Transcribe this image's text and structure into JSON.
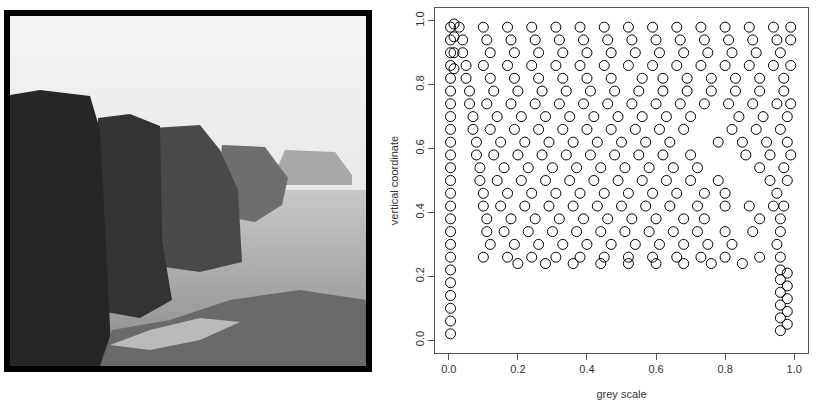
{
  "chart_data": {
    "type": "scatter",
    "xlabel": "grey scale",
    "ylabel": "vertical coordinate",
    "color": "#000000",
    "marker": "circle-open",
    "grid": false,
    "xlim": [
      -0.04,
      1.04
    ],
    "ylim": [
      -0.04,
      1.04
    ],
    "xticks": [
      {
        "value": 0,
        "label": "0.0"
      },
      0.2,
      0.4,
      0.6,
      0.8,
      {
        "value": 1,
        "label": "1.0"
      }
    ],
    "yticks": [
      {
        "value": 0,
        "label": "0.0"
      },
      0.2,
      0.4,
      0.6,
      0.8,
      {
        "value": 1,
        "label": "1.0"
      }
    ],
    "x": [
      0.03,
      0.1,
      0.17,
      0.24,
      0.31,
      0.38,
      0.45,
      0.52,
      0.59,
      0.66,
      0.73,
      0.8,
      0.87,
      0.94,
      0.99,
      0.04,
      0.11,
      0.18,
      0.25,
      0.32,
      0.39,
      0.46,
      0.53,
      0.6,
      0.67,
      0.74,
      0.81,
      0.88,
      0.95,
      0.99,
      0.04,
      0.12,
      0.19,
      0.26,
      0.33,
      0.4,
      0.47,
      0.54,
      0.61,
      0.68,
      0.75,
      0.82,
      0.89,
      0.96,
      0.05,
      0.1,
      0.17,
      0.24,
      0.31,
      0.38,
      0.45,
      0.52,
      0.59,
      0.66,
      0.73,
      0.8,
      0.87,
      0.94,
      0.99,
      0.05,
      0.12,
      0.19,
      0.26,
      0.33,
      0.4,
      0.47,
      0.56,
      0.62,
      0.69,
      0.76,
      0.83,
      0.9,
      0.97,
      0.06,
      0.13,
      0.2,
      0.27,
      0.34,
      0.41,
      0.48,
      0.55,
      0.62,
      0.69,
      0.76,
      0.83,
      0.9,
      0.97,
      0.06,
      0.11,
      0.18,
      0.25,
      0.32,
      0.39,
      0.46,
      0.53,
      0.6,
      0.67,
      0.74,
      0.81,
      0.88,
      0.95,
      0.99,
      0.07,
      0.14,
      0.21,
      0.28,
      0.35,
      0.42,
      0.49,
      0.56,
      0.63,
      0.7,
      0.84,
      0.91,
      0.98,
      0.07,
      0.12,
      0.19,
      0.26,
      0.33,
      0.4,
      0.47,
      0.54,
      0.61,
      0.68,
      0.82,
      0.89,
      0.96,
      0.08,
      0.15,
      0.22,
      0.29,
      0.36,
      0.43,
      0.5,
      0.57,
      0.64,
      0.78,
      0.85,
      0.92,
      0.98,
      0.08,
      0.13,
      0.2,
      0.27,
      0.34,
      0.41,
      0.48,
      0.55,
      0.62,
      0.7,
      0.86,
      0.93,
      0.99,
      0.09,
      0.16,
      0.23,
      0.3,
      0.37,
      0.44,
      0.51,
      0.58,
      0.65,
      0.72,
      0.9,
      0.97,
      0.09,
      0.14,
      0.21,
      0.28,
      0.35,
      0.42,
      0.49,
      0.56,
      0.63,
      0.7,
      0.78,
      0.93,
      0.98,
      0.1,
      0.17,
      0.24,
      0.31,
      0.38,
      0.45,
      0.52,
      0.59,
      0.66,
      0.74,
      0.8,
      0.95,
      0.1,
      0.15,
      0.22,
      0.29,
      0.36,
      0.43,
      0.5,
      0.57,
      0.64,
      0.72,
      0.8,
      0.87,
      0.94,
      0.97,
      0.11,
      0.18,
      0.25,
      0.32,
      0.39,
      0.46,
      0.53,
      0.6,
      0.68,
      0.74,
      0.9,
      0.96,
      0.11,
      0.16,
      0.23,
      0.3,
      0.37,
      0.44,
      0.51,
      0.58,
      0.65,
      0.72,
      0.8,
      0.88,
      0.96,
      0.12,
      0.19,
      0.26,
      0.33,
      0.4,
      0.47,
      0.54,
      0.61,
      0.68,
      0.75,
      0.82,
      0.95,
      0.1,
      0.17,
      0.24,
      0.31,
      0.38,
      0.45,
      0.52,
      0.59,
      0.66,
      0.73,
      0.8,
      0.9,
      0.96,
      0.2,
      0.28,
      0.36,
      0.44,
      0.52,
      0.6,
      0.68,
      0.76,
      0.85,
      0.96,
      0.96,
      0.96,
      0.96,
      0.96,
      0.96,
      0.98,
      0.98,
      0.98,
      0.98,
      0.98,
      0.005,
      0.005,
      0.005,
      0.005,
      0.005,
      0.005,
      0.005,
      0.005,
      0.005,
      0.005,
      0.005,
      0.005,
      0.005,
      0.005,
      0.005,
      0.005,
      0.005,
      0.005,
      0.005,
      0.005,
      0.005,
      0.005,
      0.005,
      0.005,
      0.005,
      0.015,
      0.015,
      0.015,
      0.015
    ],
    "values": [
      0.98,
      0.98,
      0.98,
      0.98,
      0.98,
      0.98,
      0.98,
      0.98,
      0.98,
      0.98,
      0.98,
      0.98,
      0.98,
      0.98,
      0.98,
      0.94,
      0.94,
      0.94,
      0.94,
      0.94,
      0.94,
      0.94,
      0.94,
      0.94,
      0.94,
      0.94,
      0.94,
      0.94,
      0.94,
      0.94,
      0.9,
      0.9,
      0.9,
      0.9,
      0.9,
      0.9,
      0.9,
      0.9,
      0.9,
      0.9,
      0.9,
      0.9,
      0.9,
      0.9,
      0.86,
      0.86,
      0.86,
      0.86,
      0.86,
      0.86,
      0.86,
      0.86,
      0.86,
      0.86,
      0.86,
      0.86,
      0.86,
      0.86,
      0.86,
      0.82,
      0.82,
      0.82,
      0.82,
      0.82,
      0.82,
      0.82,
      0.82,
      0.82,
      0.82,
      0.82,
      0.82,
      0.82,
      0.82,
      0.78,
      0.78,
      0.78,
      0.78,
      0.78,
      0.78,
      0.78,
      0.78,
      0.78,
      0.78,
      0.78,
      0.78,
      0.78,
      0.78,
      0.74,
      0.74,
      0.74,
      0.74,
      0.74,
      0.74,
      0.74,
      0.74,
      0.74,
      0.74,
      0.74,
      0.74,
      0.74,
      0.74,
      0.74,
      0.7,
      0.7,
      0.7,
      0.7,
      0.7,
      0.7,
      0.7,
      0.7,
      0.7,
      0.7,
      0.7,
      0.7,
      0.7,
      0.66,
      0.66,
      0.66,
      0.66,
      0.66,
      0.66,
      0.66,
      0.66,
      0.66,
      0.66,
      0.66,
      0.66,
      0.66,
      0.62,
      0.62,
      0.62,
      0.62,
      0.62,
      0.62,
      0.62,
      0.62,
      0.62,
      0.62,
      0.62,
      0.62,
      0.62,
      0.58,
      0.58,
      0.58,
      0.58,
      0.58,
      0.58,
      0.58,
      0.58,
      0.58,
      0.58,
      0.58,
      0.58,
      0.58,
      0.54,
      0.54,
      0.54,
      0.54,
      0.54,
      0.54,
      0.54,
      0.54,
      0.54,
      0.54,
      0.54,
      0.54,
      0.5,
      0.5,
      0.5,
      0.5,
      0.5,
      0.5,
      0.5,
      0.5,
      0.5,
      0.5,
      0.5,
      0.5,
      0.5,
      0.46,
      0.46,
      0.46,
      0.46,
      0.46,
      0.46,
      0.46,
      0.46,
      0.46,
      0.46,
      0.46,
      0.46,
      0.42,
      0.42,
      0.42,
      0.42,
      0.42,
      0.42,
      0.42,
      0.42,
      0.42,
      0.42,
      0.42,
      0.42,
      0.42,
      0.42,
      0.38,
      0.38,
      0.38,
      0.38,
      0.38,
      0.38,
      0.38,
      0.38,
      0.38,
      0.38,
      0.38,
      0.38,
      0.34,
      0.34,
      0.34,
      0.34,
      0.34,
      0.34,
      0.34,
      0.34,
      0.34,
      0.34,
      0.34,
      0.34,
      0.34,
      0.3,
      0.3,
      0.3,
      0.3,
      0.3,
      0.3,
      0.3,
      0.3,
      0.3,
      0.3,
      0.3,
      0.3,
      0.26,
      0.26,
      0.26,
      0.26,
      0.26,
      0.26,
      0.26,
      0.26,
      0.26,
      0.26,
      0.26,
      0.26,
      0.26,
      0.24,
      0.24,
      0.24,
      0.24,
      0.24,
      0.24,
      0.24,
      0.24,
      0.24,
      0.03,
      0.07,
      0.11,
      0.15,
      0.19,
      0.22,
      0.05,
      0.09,
      0.13,
      0.17,
      0.21,
      0.02,
      0.06,
      0.1,
      0.14,
      0.18,
      0.22,
      0.26,
      0.3,
      0.34,
      0.38,
      0.42,
      0.46,
      0.5,
      0.54,
      0.58,
      0.62,
      0.66,
      0.7,
      0.74,
      0.78,
      0.82,
      0.86,
      0.9,
      0.94,
      0.98,
      0.85,
      0.9,
      0.95,
      0.99
    ]
  }
}
